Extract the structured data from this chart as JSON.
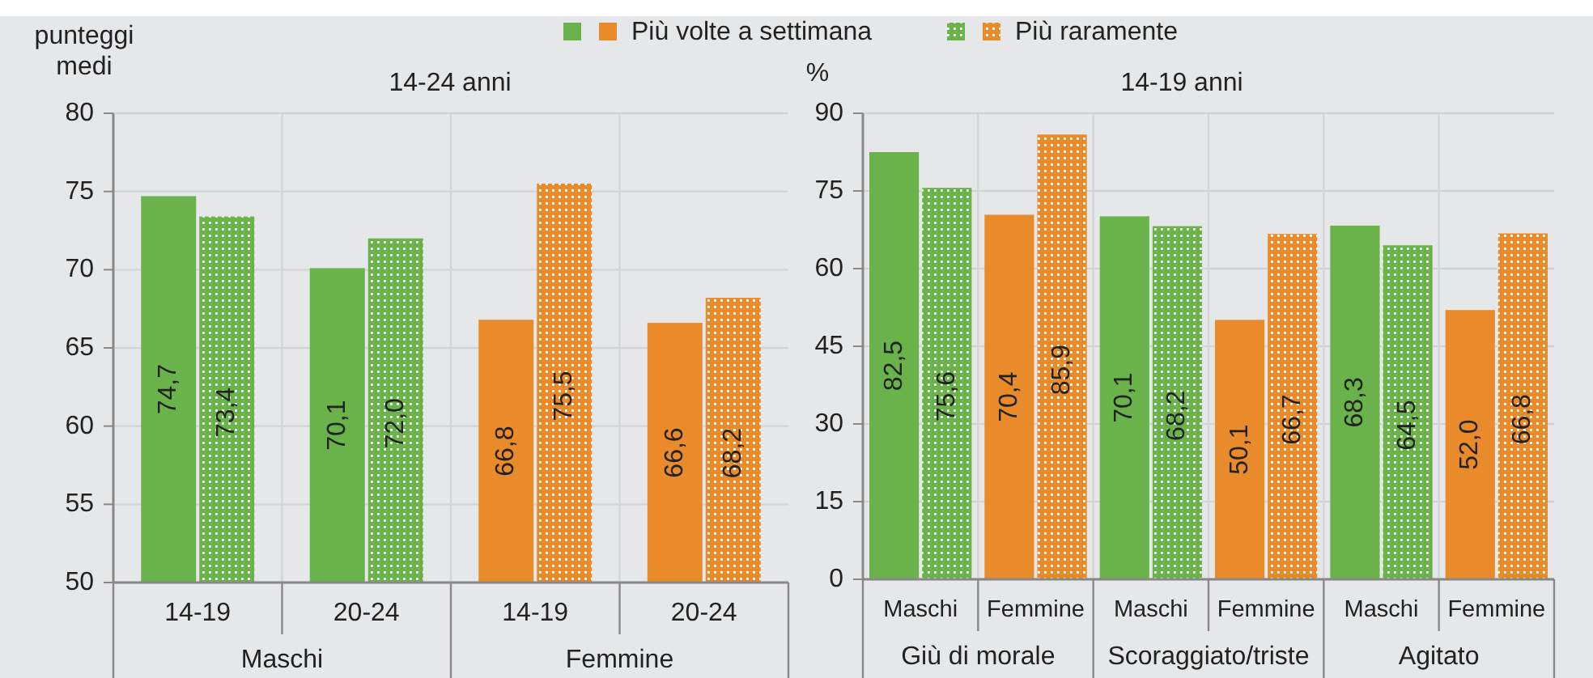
{
  "chart_data": [
    {
      "type": "bar",
      "title": "14-24 anni",
      "ylabel": "punteggi medi",
      "categories": [
        "14-19",
        "20-24",
        "14-19",
        "20-24"
      ],
      "ylim": [
        50,
        80
      ],
      "yticks": [
        50,
        55,
        60,
        65,
        70,
        75,
        80
      ],
      "grid": "y",
      "legend": "top",
      "annotations": [
        "Maschi",
        "Femmine"
      ],
      "series": [
        {
          "name": "Più volte a settimana",
          "colors": [
            "#6ab24a",
            "#6ab24a",
            "#e98b2a",
            "#e98b2a"
          ],
          "values": [
            74.7,
            70.1,
            66.8,
            66.6
          ],
          "value_labels": [
            "74,7",
            "70,1",
            "66,8",
            "66,6"
          ]
        },
        {
          "name": "Più raramente",
          "colors": [
            "#6ab24a",
            "#6ab24a",
            "#e98b2a",
            "#e98b2a"
          ],
          "values": [
            73.4,
            72.0,
            75.5,
            68.2
          ],
          "value_labels": [
            "73,4",
            "72,0",
            "75,5",
            "68,2"
          ]
        }
      ]
    },
    {
      "type": "bar",
      "title": "14-19 anni",
      "ylabel": "%",
      "categories": [
        "Maschi",
        "Femmine",
        "Maschi",
        "Femmine",
        "Maschi",
        "Femmine"
      ],
      "ylim": [
        0,
        90
      ],
      "yticks": [
        0,
        15,
        30,
        45,
        60,
        75,
        90
      ],
      "grid": "y",
      "annotations": [
        "Giù di morale",
        "Scoraggiato/triste",
        "Agitato"
      ],
      "series": [
        {
          "colors": [
            "#6ab24a",
            "#e98b2a",
            "#6ab24a",
            "#e98b2a",
            "#6ab24a",
            "#e98b2a"
          ],
          "values": [
            82.5,
            70.4,
            70.1,
            50.1,
            68.3,
            52.0
          ],
          "value_labels": [
            "82,5",
            "70,4",
            "70,1",
            "50,1",
            "68,3",
            "52,0"
          ]
        },
        {
          "colors": [
            "#6ab24a",
            "#e98b2a",
            "#6ab24a",
            "#e98b2a",
            "#6ab24a",
            "#e98b2a"
          ],
          "values": [
            75.6,
            85.9,
            68.2,
            66.7,
            64.5,
            66.8
          ],
          "value_labels": [
            "75,6",
            "85,9",
            "68,2",
            "66,7",
            "64,5",
            "66,8"
          ]
        }
      ]
    }
  ]
}
